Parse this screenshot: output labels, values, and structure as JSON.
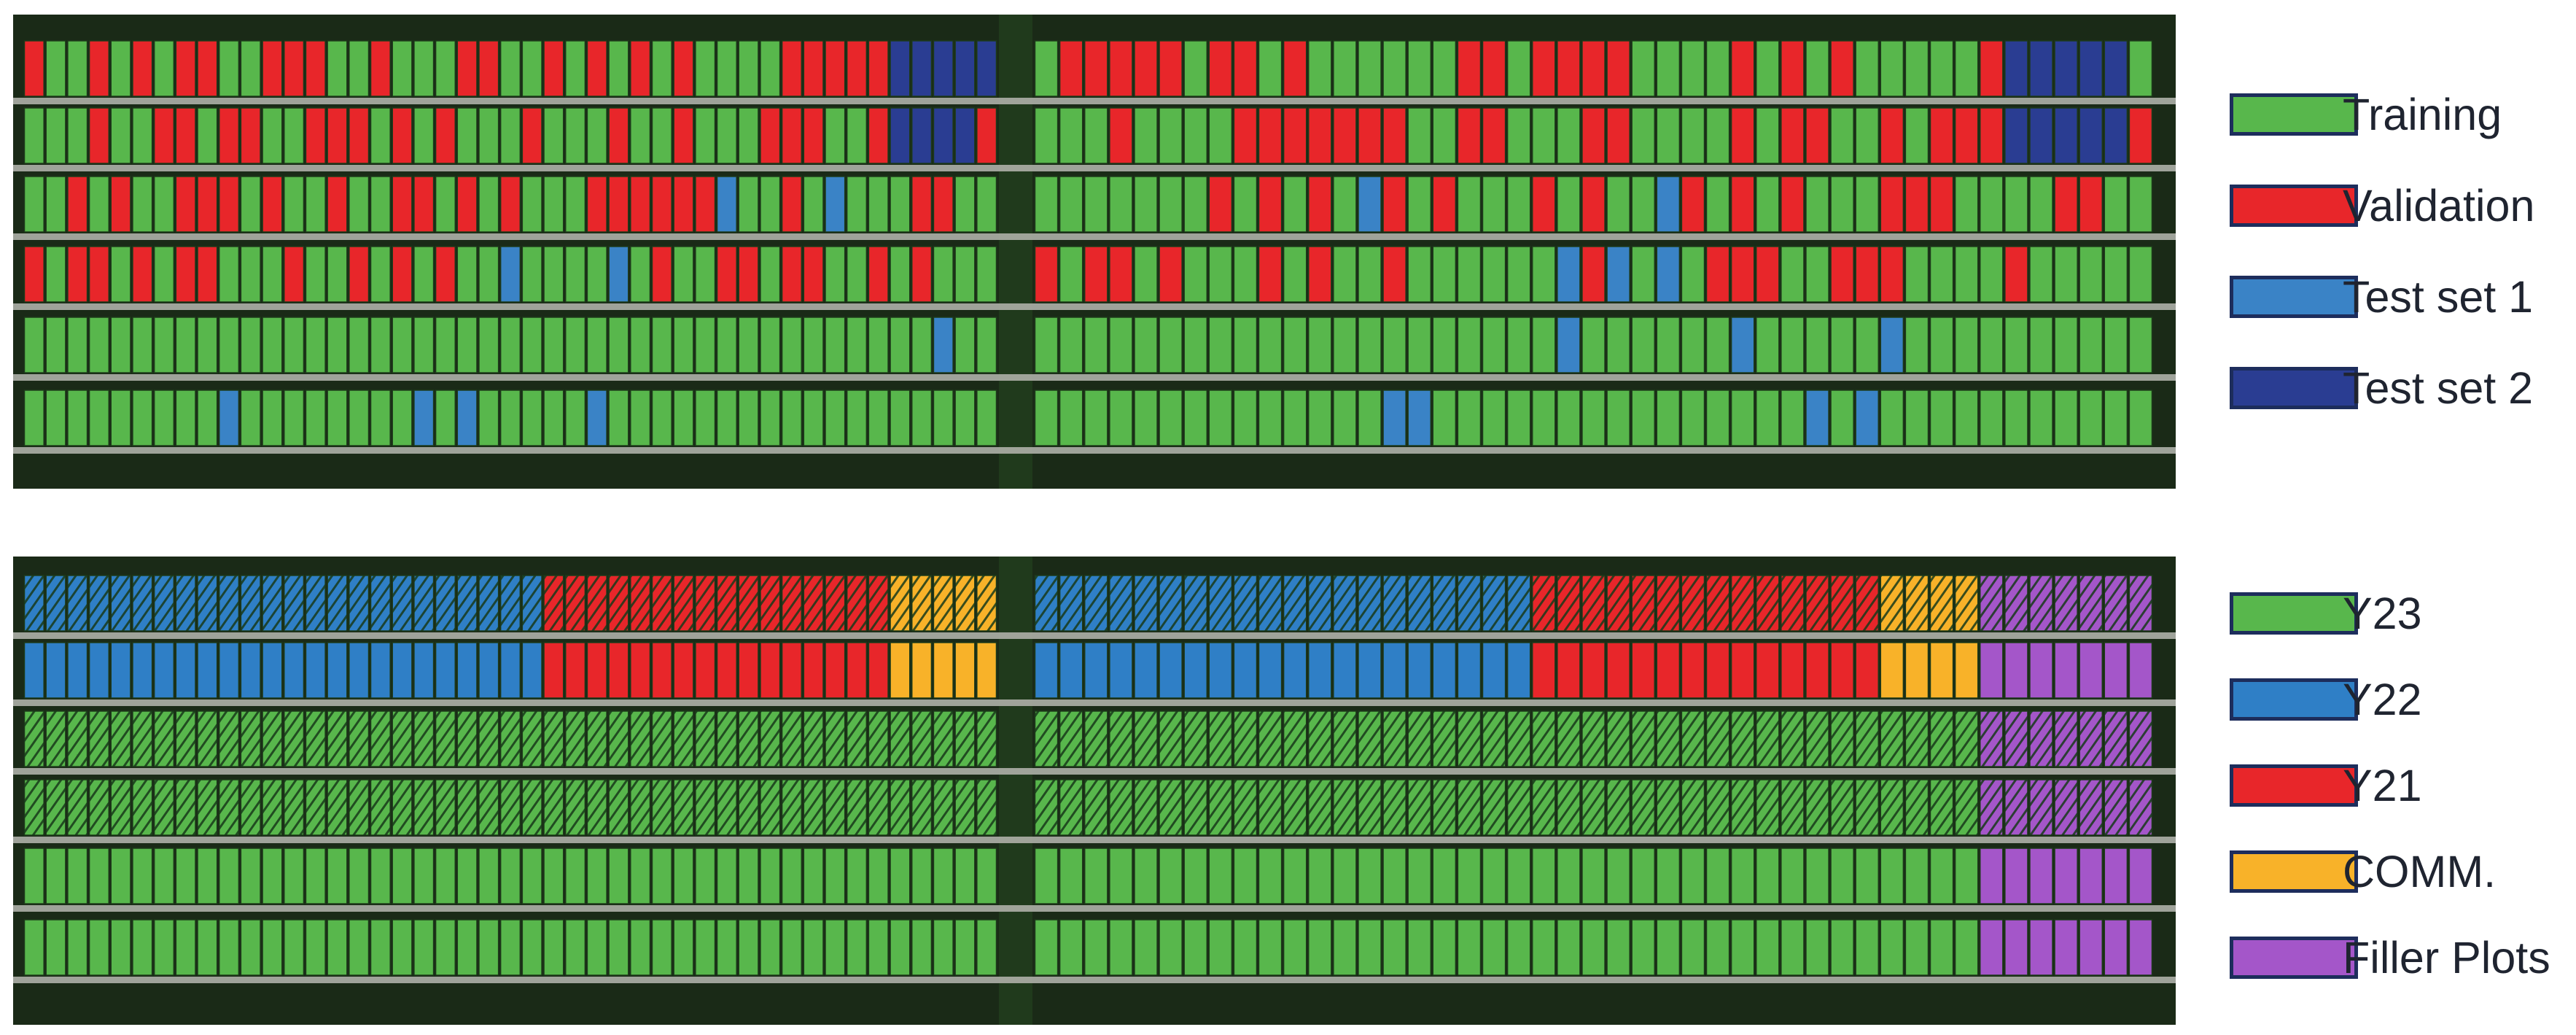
{
  "legend_split": [
    {
      "key": "training",
      "label": "Training",
      "color": "#58b74c"
    },
    {
      "key": "validation",
      "label": "Validation",
      "color": "#e8262a"
    },
    {
      "key": "test1",
      "label": "Test set 1",
      "color": "#3a83c6"
    },
    {
      "key": "test2",
      "label": "Test set 2",
      "color": "#2a3d92"
    }
  ],
  "legend_year": [
    {
      "key": "y23",
      "label": "Y23",
      "color": "#58b74c"
    },
    {
      "key": "y22",
      "label": "Y22",
      "color": "#2f7fc6"
    },
    {
      "key": "y21",
      "label": "Y21",
      "color": "#e8262a"
    },
    {
      "key": "comm",
      "label": "COMM.",
      "color": "#f8b229"
    },
    {
      "key": "filler",
      "label": "Filler Plots",
      "color": "#a456c9"
    }
  ],
  "colors": {
    "field_bg": "#1a2a17",
    "alley": "#aeb0a8",
    "center_strip": "#203a1c",
    "hatch": "#183a1a"
  },
  "plots_per_half": 45
}
